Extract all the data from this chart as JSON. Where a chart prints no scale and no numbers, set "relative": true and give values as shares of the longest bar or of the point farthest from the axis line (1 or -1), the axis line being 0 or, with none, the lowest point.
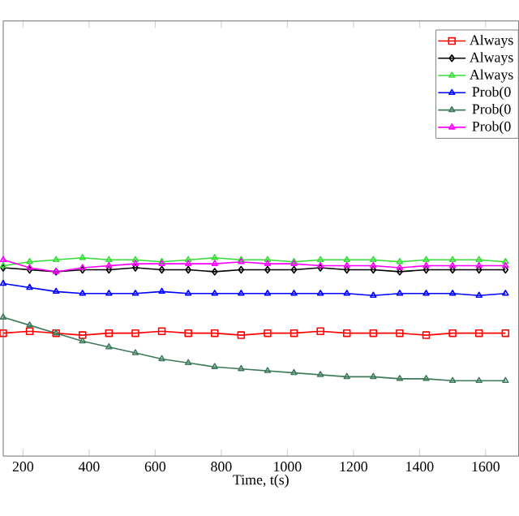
{
  "chart_data": {
    "type": "line",
    "xlabel": "Time, t(s)",
    "relative": true,
    "xlim": [
      140,
      1700
    ],
    "xticks": [
      200,
      400,
      600,
      800,
      1000,
      1200,
      1400,
      1600
    ],
    "legend": "top right",
    "x": [
      140,
      220,
      300,
      380,
      460,
      540,
      620,
      700,
      780,
      860,
      940,
      1020,
      1100,
      1180,
      1260,
      1340,
      1420,
      1500,
      1580,
      1660
    ],
    "series": [
      {
        "name": "Always",
        "color": "#ff0000",
        "marker": "square",
        "values": [
          0.62,
          0.63,
          0.62,
          0.61,
          0.62,
          0.62,
          0.63,
          0.62,
          0.62,
          0.61,
          0.62,
          0.62,
          0.63,
          0.62,
          0.62,
          0.62,
          0.61,
          0.62,
          0.62,
          0.62
        ]
      },
      {
        "name": "Always",
        "color": "#000000",
        "marker": "diamond",
        "values": [
          0.95,
          0.94,
          0.93,
          0.94,
          0.94,
          0.95,
          0.94,
          0.94,
          0.93,
          0.94,
          0.94,
          0.94,
          0.95,
          0.94,
          0.94,
          0.93,
          0.94,
          0.94,
          0.94,
          0.94
        ]
      },
      {
        "name": "Always",
        "color": "#33dd33",
        "marker": "triangle",
        "values": [
          0.96,
          0.98,
          0.99,
          1.0,
          0.99,
          0.99,
          0.98,
          0.99,
          1.0,
          0.99,
          0.99,
          0.98,
          0.99,
          0.99,
          0.99,
          0.98,
          0.99,
          0.99,
          0.99,
          0.98
        ]
      },
      {
        "name": "Prob(0",
        "color": "#0000ff",
        "marker": "triangle",
        "values": [
          0.87,
          0.85,
          0.83,
          0.82,
          0.82,
          0.82,
          0.83,
          0.82,
          0.82,
          0.82,
          0.82,
          0.82,
          0.82,
          0.82,
          0.81,
          0.82,
          0.82,
          0.82,
          0.81,
          0.82
        ]
      },
      {
        "name": "Prob(0",
        "color": "#3d7a5a",
        "marker": "triangle",
        "values": [
          0.7,
          0.66,
          0.62,
          0.58,
          0.55,
          0.52,
          0.49,
          0.47,
          0.45,
          0.44,
          0.43,
          0.42,
          0.41,
          0.4,
          0.4,
          0.39,
          0.39,
          0.38,
          0.38,
          0.38
        ]
      },
      {
        "name": "Prob(0",
        "color": "#ff00ff",
        "marker": "triangle",
        "values": [
          0.99,
          0.95,
          0.93,
          0.95,
          0.96,
          0.97,
          0.97,
          0.97,
          0.97,
          0.98,
          0.97,
          0.97,
          0.96,
          0.96,
          0.96,
          0.95,
          0.96,
          0.96,
          0.96,
          0.96
        ]
      }
    ]
  }
}
